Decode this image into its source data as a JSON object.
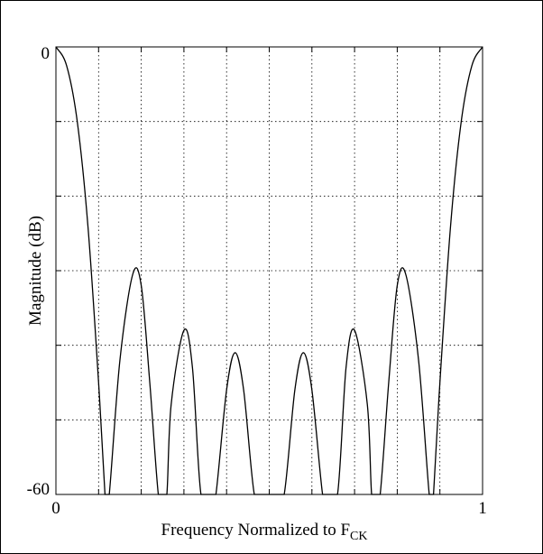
{
  "chart_data": {
    "type": "line",
    "title": "",
    "xlabel": "Frequency Normalized to F",
    "xlabel_subscript": "CK",
    "ylabel": "Magnitude (dB)",
    "xlim": [
      0,
      1
    ],
    "ylim": [
      -60,
      0
    ],
    "x_tick_labels": [
      "0",
      "1"
    ],
    "y_tick_labels": [
      "0",
      "-60"
    ],
    "grid": true,
    "grid_style": "dotted",
    "line_color": "#000000",
    "series": [
      {
        "x": [
          0.0,
          0.025,
          0.05,
          0.075,
          0.1,
          0.115,
          0.118,
          0.125,
          0.15,
          0.18,
          0.2,
          0.22,
          0.24,
          0.25,
          0.26,
          0.27,
          0.3,
          0.32,
          0.34,
          0.365,
          0.375,
          0.4,
          0.42,
          0.44,
          0.465,
          0.485,
          0.5,
          0.515,
          0.535,
          0.56,
          0.58,
          0.6,
          0.625,
          0.635,
          0.66,
          0.68,
          0.7,
          0.73,
          0.74,
          0.75,
          0.76,
          0.78,
          0.8,
          0.82,
          0.85,
          0.875,
          0.882,
          0.885,
          0.9,
          0.925,
          0.95,
          0.975,
          1.0
        ],
        "y": [
          0,
          -2.5,
          -10,
          -24,
          -45,
          -60,
          -60,
          -60,
          -42,
          -30.5,
          -32,
          -45,
          -60,
          -60,
          -60,
          -48,
          -38,
          -43,
          -60,
          -60,
          -60,
          -46,
          -41,
          -46,
          -60,
          -60,
          -60,
          -60,
          -60,
          -46,
          -41,
          -46,
          -60,
          -60,
          -60,
          -43,
          -38,
          -48,
          -60,
          -60,
          -60,
          -45,
          -32,
          -30.5,
          -42,
          -60,
          -60,
          -60,
          -45,
          -24,
          -10,
          -2.5,
          0
        ]
      }
    ]
  }
}
